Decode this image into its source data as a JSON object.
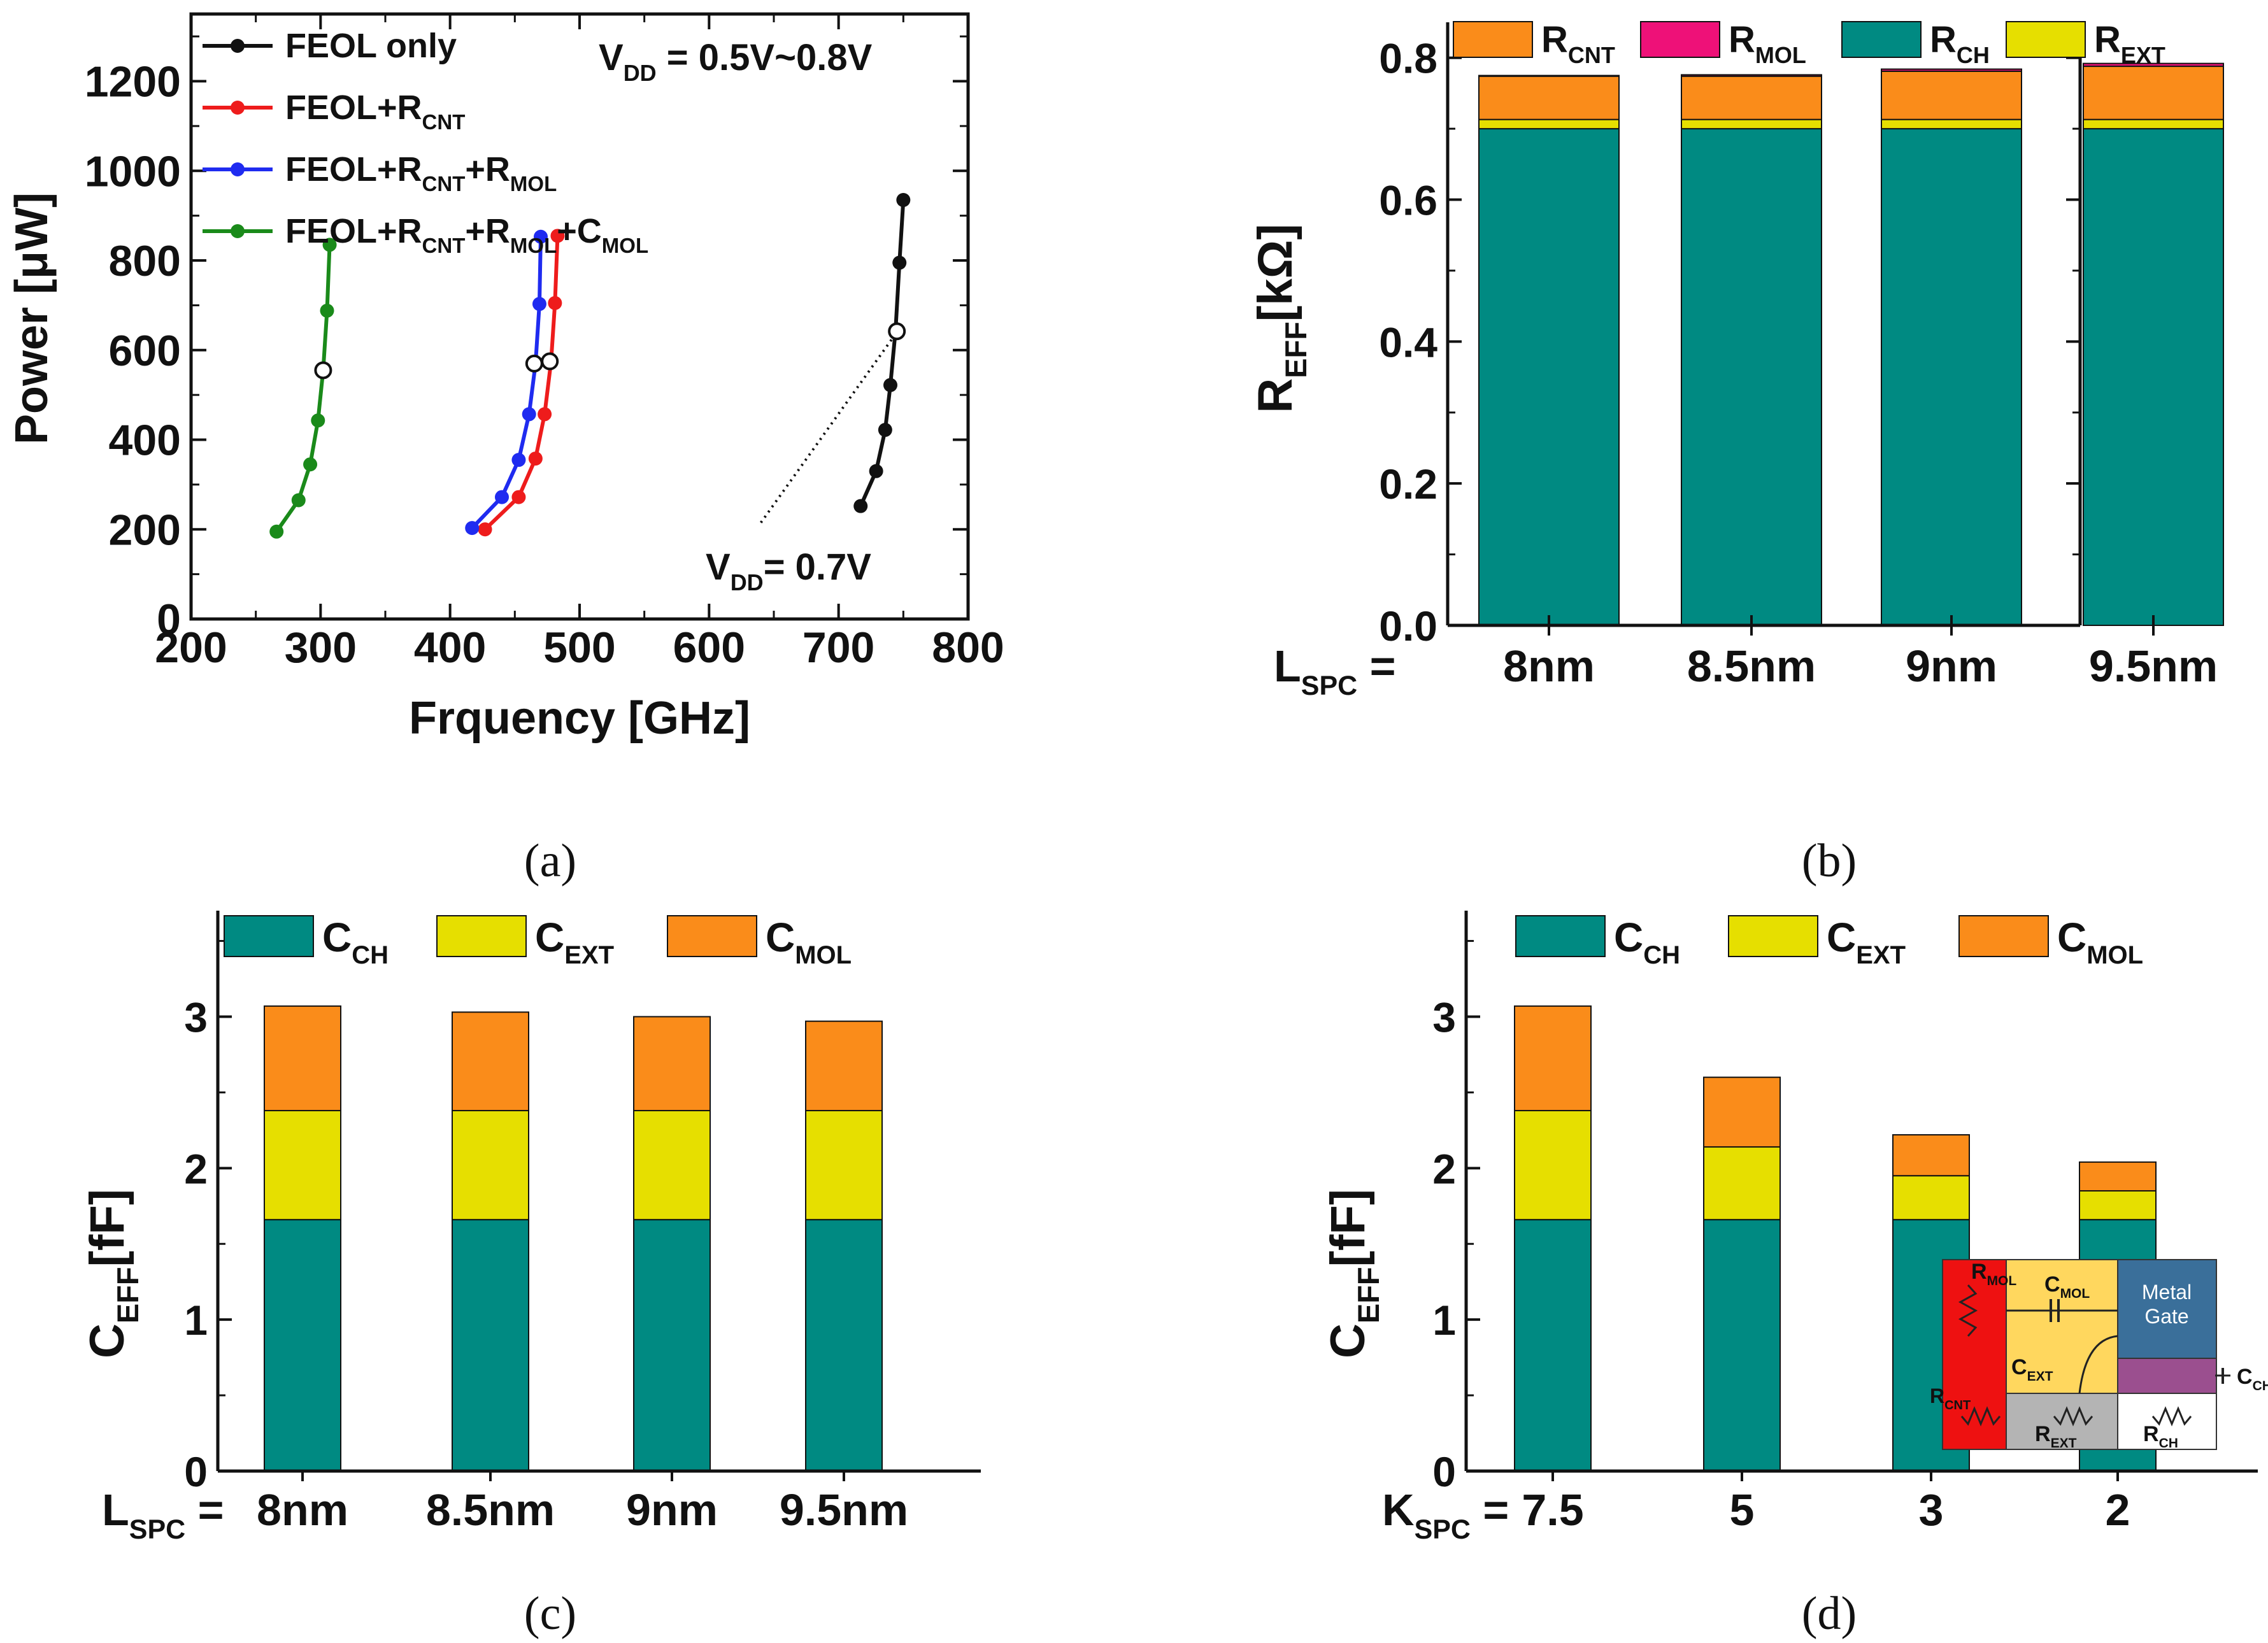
{
  "panel_labels": {
    "a": "(a)",
    "b": "(b)",
    "c": "(c)",
    "d": "(d)"
  },
  "colors": {
    "black": "#111111",
    "red": "#ee1c1c",
    "blue": "#1f2bf0",
    "green": "#1a8a1a",
    "teal": "#008a82",
    "yellow": "#e6df00",
    "orange": "#fa8c1a",
    "magenta": "#ee1178",
    "inset_red": "#ee1111",
    "inset_yellow": "#ffd75e",
    "inset_blue": "#3a6f9a",
    "inset_purple": "#9b4f8f",
    "inset_gray": "#b4b4b4"
  },
  "chart_data": [
    {
      "id": "a",
      "type": "line",
      "xlabel": "Frquency [GHz]",
      "ylabel": "Power [μW]",
      "xlim": [
        200,
        800
      ],
      "ylim": [
        0,
        1350
      ],
      "xticks": [
        200,
        300,
        400,
        500,
        600,
        700,
        800
      ],
      "yticks": [
        0,
        200,
        400,
        600,
        800,
        1000,
        1200
      ],
      "annotations": {
        "vdd_range": "V<sub>DD</sub> = 0.5V~0.8V",
        "vdd_point": "V<sub>DD</sub>= 0.7V"
      },
      "vdd_guide": {
        "from": [
          640,
          215
        ],
        "to": [
          745,
          640
        ]
      },
      "series": [
        {
          "name": "FEOL only",
          "label": "FEOL only",
          "color": "#111111",
          "x": [
            717,
            729,
            736,
            740,
            744,
            747,
            750
          ],
          "y": [
            252,
            330,
            422,
            522,
            645,
            795,
            935
          ],
          "open_point": [
            745,
            642
          ]
        },
        {
          "name": "FEOL+RCNT",
          "label": "FEOL+R<sub>CNT</sub>",
          "color": "#ee1c1c",
          "x": [
            427,
            453,
            466,
            473,
            478,
            481,
            483
          ],
          "y": [
            200,
            272,
            358,
            457,
            575,
            705,
            855
          ],
          "open_point": [
            477,
            575
          ]
        },
        {
          "name": "FEOL+RCNT+RMOL",
          "label": "FEOL+R<sub>CNT</sub>+R<sub>MOL</sub>",
          "color": "#1f2bf0",
          "x": [
            417,
            440,
            453,
            461,
            466,
            469,
            470
          ],
          "y": [
            203,
            272,
            355,
            457,
            570,
            703,
            853
          ],
          "open_point": [
            465,
            570
          ]
        },
        {
          "name": "FEOL+RCNT+RMOL+CMOL",
          "label": "FEOL+R<sub>CNT</sub>+R<sub>MOL</sub>+C<sub>MOL</sub>",
          "color": "#1a8a1a",
          "x": [
            266,
            283,
            292,
            298,
            302,
            305,
            307
          ],
          "y": [
            195,
            265,
            345,
            443,
            555,
            688,
            835
          ],
          "open_point": [
            302,
            555
          ]
        }
      ]
    },
    {
      "id": "b",
      "type": "bar",
      "ylabel": "R<sub>EFF</sub>[kΩ]",
      "xlabel_prefix": "L<sub>SPC</sub> =",
      "categories": [
        "8nm",
        "8.5nm",
        "9nm",
        "9.5nm"
      ],
      "ylim": [
        0,
        0.85
      ],
      "yticks": [
        "0.0",
        "0.2",
        "0.4",
        "0.6",
        "0.8"
      ],
      "legend": [
        "R<sub>CNT</sub>",
        "R<sub>MOL</sub>",
        "R<sub>CH</sub>",
        "R<sub>EXT</sub>"
      ],
      "series": [
        {
          "name": "RCH",
          "color": "#008a82",
          "values": [
            0.7,
            0.7,
            0.7,
            0.7
          ]
        },
        {
          "name": "REXT",
          "color": "#e6df00",
          "values": [
            0.013,
            0.013,
            0.013,
            0.013
          ]
        },
        {
          "name": "RCNT",
          "color": "#fa8c1a",
          "values": [
            0.061,
            0.061,
            0.068,
            0.075
          ]
        },
        {
          "name": "RMOL",
          "color": "#ee1178",
          "values": [
            0.001,
            0.002,
            0.003,
            0.004
          ]
        }
      ]
    },
    {
      "id": "c",
      "type": "bar",
      "ylabel": "C<sub>EFF</sub>[fF]",
      "xlabel_prefix": "L<sub>SPC</sub> =",
      "categories": [
        "8nm",
        "8.5nm",
        "9nm",
        "9.5nm"
      ],
      "ylim": [
        0,
        3.7
      ],
      "yticks": [
        "0",
        "1",
        "2",
        "3"
      ],
      "legend": [
        "C<sub>CH</sub>",
        "C<sub>EXT</sub>",
        "C<sub>MOL</sub>"
      ],
      "series": [
        {
          "name": "CCH",
          "color": "#008a82",
          "values": [
            1.66,
            1.66,
            1.66,
            1.66
          ]
        },
        {
          "name": "CEXT",
          "color": "#e6df00",
          "values": [
            0.72,
            0.72,
            0.72,
            0.72
          ]
        },
        {
          "name": "CMOL",
          "color": "#fa8c1a",
          "values": [
            0.69,
            0.65,
            0.62,
            0.59
          ]
        }
      ]
    },
    {
      "id": "d",
      "type": "bar",
      "ylabel": "C<sub>EFF</sub>[fF]",
      "xlabel_prefix": "K<sub>SPC</sub> =",
      "categories": [
        "7.5",
        "5",
        "3",
        "2"
      ],
      "ylim": [
        0,
        3.7
      ],
      "yticks": [
        "0",
        "1",
        "2",
        "3"
      ],
      "legend": [
        "C<sub>CH</sub>",
        "C<sub>EXT</sub>",
        "C<sub>MOL</sub>"
      ],
      "series": [
        {
          "name": "CCH",
          "color": "#008a82",
          "values": [
            1.66,
            1.66,
            1.66,
            1.66
          ]
        },
        {
          "name": "CEXT",
          "color": "#e6df00",
          "values": [
            0.72,
            0.48,
            0.29,
            0.19
          ]
        },
        {
          "name": "CMOL",
          "color": "#fa8c1a",
          "values": [
            0.69,
            0.46,
            0.27,
            0.19
          ]
        }
      ],
      "inset": {
        "labels": {
          "rmol": "R<sub>MOL</sub>",
          "cmol": "C<sub>MOL</sub>",
          "gate": "Metal",
          "gate2": "Gate",
          "cext": "C<sub>EXT</sub>",
          "cch": "C<sub>CH</sub>",
          "rcnt": "R<sub>CNT</sub>",
          "rext": "R<sub>EXT</sub>",
          "rch": "R<sub>CH</sub>"
        }
      }
    }
  ]
}
